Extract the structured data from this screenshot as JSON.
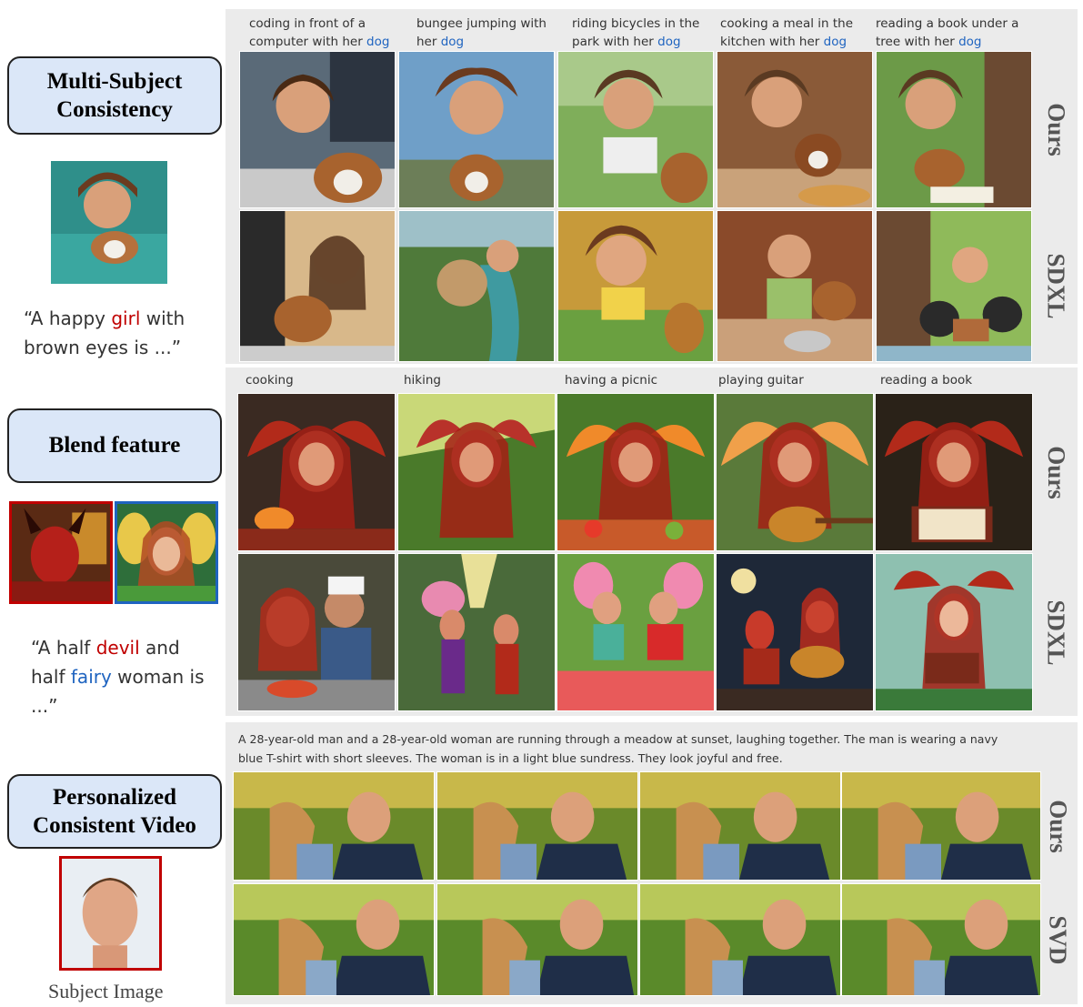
{
  "sections": {
    "multi_subject": {
      "label": [
        "Multi-Subject",
        "Consistency"
      ],
      "prompt_parts": [
        "“A happy ",
        "girl",
        " with brown eyes is ...”"
      ],
      "captions": [
        {
          "text": "coding in front of a computer with her ",
          "hl": "dog"
        },
        {
          "text": "bungee jumping with her ",
          "hl": "dog"
        },
        {
          "text": "riding bicycles in the park with her ",
          "hl": "dog"
        },
        {
          "text": "cooking a meal in the kitchen with her ",
          "hl": "dog"
        },
        {
          "text": "reading a book under a tree with her ",
          "hl": "dog"
        }
      ],
      "row_labels": [
        "Ours",
        "SDXL"
      ]
    },
    "blend": {
      "label": [
        "Blend feature"
      ],
      "prompt_parts": [
        "“A half ",
        "devil",
        " and half ",
        "fairy",
        " woman is ...”"
      ],
      "captions": [
        "cooking",
        "hiking",
        "having a picnic",
        "playing guitar",
        "reading a book"
      ],
      "row_labels": [
        "Ours",
        "SDXL"
      ]
    },
    "video": {
      "label": [
        "Personalized",
        "Consistent Video"
      ],
      "caption": "A 28-year-old man and a 28-year-old woman are running through a meadow at sunset, laughing together. The man is wearing a navy blue T-shirt with short sleeves. The woman is in a light blue sundress. They look joyful and free.",
      "row_labels": [
        "Ours",
        "SVD"
      ],
      "subject_label": "Subject Image"
    }
  },
  "colors": {
    "label_bg": "#dbe7f8",
    "panel_bg": "#ebebeb",
    "highlight_blue": "#1f64c0",
    "highlight_red": "#c00000"
  }
}
